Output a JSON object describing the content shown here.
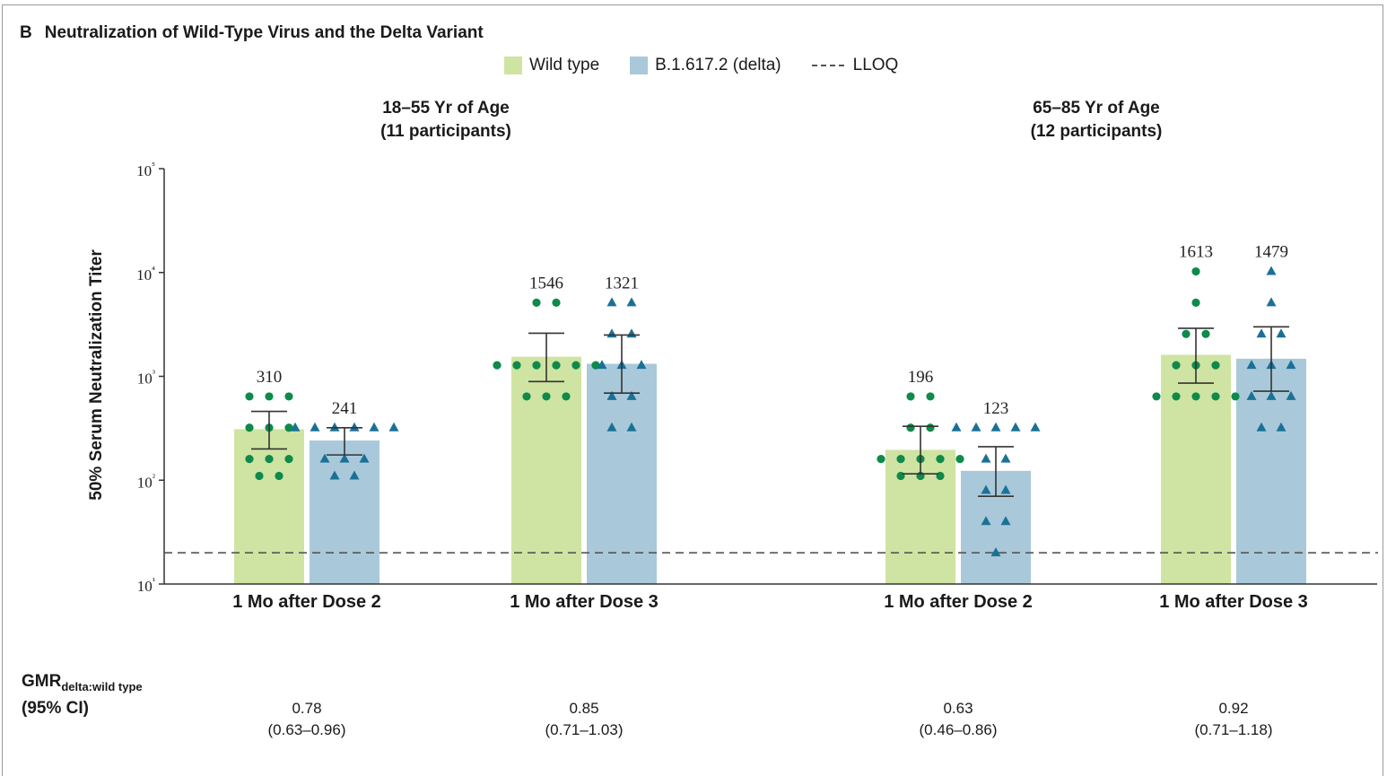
{
  "panel": {
    "letter": "B",
    "title": "Neutralization of Wild-Type Virus and the Delta Variant"
  },
  "legend": {
    "wild_type": "Wild type",
    "delta": "B.1.617.2 (delta)",
    "lloq": "LLOQ"
  },
  "groups": [
    {
      "title_line1": "18–55 Yr of Age",
      "title_line2": "(11 participants)"
    },
    {
      "title_line1": "65–85 Yr of Age",
      "title_line2": "(12 participants)"
    }
  ],
  "categories": [
    "1 Mo after Dose 2",
    "1 Mo after Dose 3",
    "1 Mo after Dose 2",
    "1 Mo after Dose 3"
  ],
  "gmr": {
    "label_main": "GMR",
    "label_sub": "delta:wild type",
    "label_ci": "(95% CI)",
    "values": [
      "0.78",
      "0.85",
      "0.63",
      "0.92"
    ],
    "cis": [
      "(0.63–0.96)",
      "(0.71–1.03)",
      "(0.46–0.86)",
      "(0.71–1.18)"
    ]
  },
  "chart_data": {
    "type": "bar",
    "title": "Neutralization of Wild-Type Virus and the Delta Variant",
    "ylabel": "50% Serum Neutralization Titer",
    "yscale": "log",
    "ylim": [
      10,
      100000
    ],
    "yticks": [
      10,
      100,
      1000,
      10000,
      100000
    ],
    "yticklabels": [
      "10¹",
      "10²",
      "10³",
      "10⁴",
      "10⁵"
    ],
    "lloq": 20,
    "colors": {
      "wild_type": "#cfe4a2",
      "delta": "#a9c9da",
      "wild_type_points": "#0e8a4a",
      "delta_points": "#1a7196"
    },
    "categories": [
      "1 Mo after Dose 2",
      "1 Mo after Dose 3",
      "1 Mo after Dose 2",
      "1 Mo after Dose 3"
    ],
    "series": [
      {
        "name": "Wild type",
        "values": [
          310,
          1546,
          196,
          1613
        ],
        "ci_low": [
          200,
          890,
          115,
          860
        ],
        "ci_high": [
          460,
          2600,
          330,
          2900
        ],
        "value_labels": [
          "310",
          "1546",
          "196",
          "1613"
        ],
        "points": [
          [
            640,
            640,
            640,
            320,
            320,
            320,
            160,
            160,
            160,
            110,
            110
          ],
          [
            5120,
            5120,
            1280,
            1280,
            1280,
            1280,
            1280,
            1280,
            640,
            640,
            640
          ],
          [
            640,
            640,
            320,
            320,
            160,
            160,
            160,
            160,
            160,
            110,
            110,
            110
          ],
          [
            10240,
            5120,
            2560,
            2560,
            1280,
            1280,
            1280,
            640,
            640,
            640,
            640,
            640
          ]
        ]
      },
      {
        "name": "B.1.617.2 (delta)",
        "values": [
          241,
          1321,
          123,
          1479
        ],
        "ci_low": [
          175,
          690,
          70,
          720
        ],
        "ci_high": [
          320,
          2500,
          210,
          3000
        ],
        "value_labels": [
          "241",
          "1321",
          "123",
          "1479"
        ],
        "points": [
          [
            320,
            320,
            320,
            320,
            320,
            320,
            160,
            160,
            160,
            110,
            110
          ],
          [
            5120,
            5120,
            2560,
            2560,
            1280,
            1280,
            1280,
            640,
            640,
            320,
            320
          ],
          [
            320,
            320,
            320,
            320,
            320,
            160,
            160,
            80,
            80,
            40,
            40,
            20
          ],
          [
            10240,
            5120,
            2560,
            2560,
            1280,
            1280,
            1280,
            640,
            640,
            640,
            320,
            320
          ]
        ]
      }
    ]
  }
}
